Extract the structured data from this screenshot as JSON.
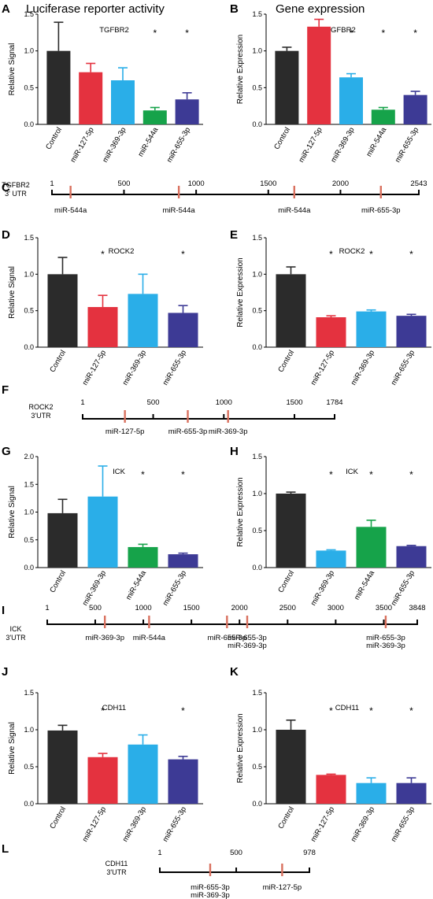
{
  "column_titles": [
    "Luciferase reporter activity",
    "Gene expression"
  ],
  "colors": {
    "Control": "#2b2b2b",
    "miR-127-5p": "#e4323f",
    "miR-369-3p": "#2aaee8",
    "miR-544a": "#16a34a",
    "miR-655-3p": "#3d3a95",
    "utr_mark": "#d9705e"
  },
  "chart_data": [
    {
      "panel": "A",
      "type": "bar",
      "title": "TGFBR2",
      "ylabel": "Relative Signal",
      "ylim": [
        0,
        1.5
      ],
      "yticks": [
        "0.0",
        "0.5",
        "1.0",
        "1.5"
      ],
      "categories": [
        "Control",
        "miR-127-5p",
        "miR-369-3p",
        "miR-544a",
        "miR-655-3p"
      ],
      "values": [
        1.0,
        0.71,
        0.6,
        0.19,
        0.34
      ],
      "errors": [
        0.39,
        0.12,
        0.17,
        0.04,
        0.09
      ],
      "significant": [
        false,
        false,
        false,
        true,
        true
      ]
    },
    {
      "panel": "B",
      "type": "bar",
      "title": "TGFBR2",
      "ylabel": "Relative Expression",
      "ylim": [
        0,
        1.5
      ],
      "yticks": [
        "0.0",
        "0.5",
        "1.0",
        "1.5"
      ],
      "categories": [
        "Control",
        "miR-127-5p",
        "miR-369-3p",
        "miR-544a",
        "miR-655-3p"
      ],
      "values": [
        1.0,
        1.33,
        0.64,
        0.2,
        0.4
      ],
      "errors": [
        0.05,
        0.1,
        0.05,
        0.03,
        0.05
      ],
      "significant": [
        false,
        false,
        true,
        true,
        true
      ]
    },
    {
      "panel": "D",
      "type": "bar",
      "title": "ROCK2",
      "ylabel": "Relative Signal",
      "ylim": [
        0,
        1.5
      ],
      "yticks": [
        "0.0",
        "0.5",
        "1.0",
        "1.5"
      ],
      "categories": [
        "Control",
        "miR-127-5p",
        "miR-369-3p",
        "miR-655-3p"
      ],
      "values": [
        1.0,
        0.55,
        0.73,
        0.47
      ],
      "errors": [
        0.23,
        0.16,
        0.27,
        0.1
      ],
      "significant": [
        false,
        true,
        false,
        true
      ]
    },
    {
      "panel": "E",
      "type": "bar",
      "title": "ROCK2",
      "ylabel": "Relative Expression",
      "ylim": [
        0,
        1.5
      ],
      "yticks": [
        "0.0",
        "0.5",
        "1.0",
        "1.5"
      ],
      "categories": [
        "Control",
        "miR-127-5p",
        "miR-369-3p",
        "miR-655-3p"
      ],
      "values": [
        1.0,
        0.41,
        0.49,
        0.43
      ],
      "errors": [
        0.1,
        0.02,
        0.02,
        0.02
      ],
      "significant": [
        false,
        true,
        true,
        true
      ]
    },
    {
      "panel": "G",
      "type": "bar",
      "title": "ICK",
      "ylabel": "Relative Signal",
      "ylim": [
        0,
        2.0
      ],
      "yticks": [
        "0.0",
        "0.5",
        "1.0",
        "1.5",
        "2.0"
      ],
      "categories": [
        "Control",
        "miR-369-3p",
        "miR-544a",
        "miR-655-3p"
      ],
      "values": [
        0.98,
        1.28,
        0.37,
        0.24
      ],
      "errors": [
        0.25,
        0.55,
        0.05,
        0.02
      ],
      "significant": [
        false,
        false,
        true,
        true
      ]
    },
    {
      "panel": "H",
      "type": "bar",
      "title": "ICK",
      "ylabel": "Relative Expression",
      "ylim": [
        0,
        1.5
      ],
      "yticks": [
        "0.0",
        "0.5",
        "1.0",
        "1.5"
      ],
      "categories": [
        "Control",
        "miR-369-3p",
        "miR-544a",
        "miR-655-3p"
      ],
      "values": [
        1.0,
        0.23,
        0.55,
        0.29
      ],
      "errors": [
        0.02,
        0.01,
        0.09,
        0.01
      ],
      "significant": [
        false,
        true,
        true,
        true
      ]
    },
    {
      "panel": "J",
      "type": "bar",
      "title": "CDH11",
      "ylabel": "Relative Signal",
      "ylim": [
        0,
        1.5
      ],
      "yticks": [
        "0.0",
        "0.5",
        "1.0",
        "1.5"
      ],
      "categories": [
        "Control",
        "miR-127-5p",
        "miR-369-3p",
        "miR-655-3p"
      ],
      "values": [
        0.99,
        0.63,
        0.8,
        0.6
      ],
      "errors": [
        0.07,
        0.05,
        0.13,
        0.04
      ],
      "significant": [
        false,
        true,
        false,
        true
      ]
    },
    {
      "panel": "K",
      "type": "bar",
      "title": "CDH11",
      "ylabel": "Relative Expression",
      "ylim": [
        0,
        1.5
      ],
      "yticks": [
        "0.0",
        "0.5",
        "1.0",
        "1.5"
      ],
      "categories": [
        "Control",
        "miR-127-5p",
        "miR-369-3p",
        "miR-655-3p"
      ],
      "values": [
        1.0,
        0.39,
        0.28,
        0.28
      ],
      "errors": [
        0.13,
        0.01,
        0.07,
        0.07
      ],
      "significant": [
        false,
        true,
        true,
        true
      ]
    }
  ],
  "utr_maps": [
    {
      "panel": "C",
      "gene_lines": [
        "TGFBR2",
        "3' UTR"
      ],
      "length": 2543,
      "ticks": [
        1,
        500,
        1000,
        1500,
        2000,
        2543
      ],
      "sites": [
        {
          "pos": 130,
          "labels": [
            "miR-544a"
          ]
        },
        {
          "pos": 880,
          "labels": [
            "miR-544a"
          ]
        },
        {
          "pos": 1680,
          "labels": [
            "miR-544a"
          ]
        },
        {
          "pos": 2280,
          "labels": [
            "miR-655-3p"
          ]
        }
      ]
    },
    {
      "panel": "F",
      "gene_lines": [
        "ROCK2",
        "3'UTR"
      ],
      "length": 1784,
      "ticks": [
        1,
        500,
        1000,
        1500,
        1784
      ],
      "sites": [
        {
          "pos": 300,
          "labels": [
            "miR-127-5p"
          ]
        },
        {
          "pos": 745,
          "labels": [
            "miR-655-3p"
          ]
        },
        {
          "pos": 1030,
          "labels": [
            "miR-369-3p"
          ]
        }
      ]
    },
    {
      "panel": "I",
      "gene_lines": [
        "ICK",
        "3'UTR"
      ],
      "length": 3848,
      "ticks": [
        1,
        500,
        1000,
        1500,
        2000,
        2500,
        3000,
        3500,
        3848
      ],
      "sites": [
        {
          "pos": 600,
          "labels": [
            "miR-369-3p"
          ]
        },
        {
          "pos": 1060,
          "labels": [
            "miR-544a"
          ]
        },
        {
          "pos": 1870,
          "labels": [
            "miR-655-3p"
          ]
        },
        {
          "pos": 2080,
          "labels": [
            "miR-655-3p",
            "miR-369-3p"
          ]
        },
        {
          "pos": 3520,
          "labels": [
            "miR-655-3p",
            "miR-369-3p"
          ]
        }
      ]
    },
    {
      "panel": "L",
      "gene_lines": [
        "CDH11",
        "3'UTR"
      ],
      "length": 978,
      "ticks": [
        1,
        500,
        978
      ],
      "sites": [
        {
          "pos": 330,
          "labels": [
            "miR-655-3p",
            "miR-369-3p"
          ]
        },
        {
          "pos": 800,
          "labels": [
            "miR-127-5p"
          ]
        }
      ]
    }
  ]
}
